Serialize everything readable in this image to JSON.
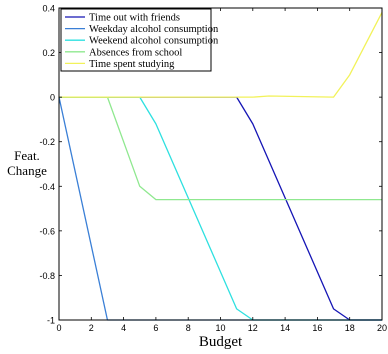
{
  "chart_data": {
    "type": "line",
    "title": "",
    "xlabel": "Budget",
    "ylabel": "Feat. Change",
    "xlim": [
      0,
      20
    ],
    "ylim": [
      -1,
      0.4
    ],
    "xticks": [
      0,
      2,
      4,
      6,
      8,
      10,
      12,
      14,
      16,
      18,
      20
    ],
    "yticks": [
      0.4,
      0.2,
      0,
      -0.2,
      -0.4,
      -0.6,
      -0.8,
      -1
    ],
    "ytick_labels": [
      "0.4",
      "0.2",
      "0",
      "-0.2",
      "-0.4",
      "-0.6",
      "-0.8",
      "-1"
    ],
    "grid": false,
    "legend_position": "top-left",
    "series": [
      {
        "name": "Time out with friends",
        "color": "#1515b5",
        "x": [
          0,
          11,
          12,
          17,
          18,
          20
        ],
        "y": [
          0,
          0,
          -0.12,
          -0.95,
          -1,
          -1
        ]
      },
      {
        "name": "Weekday alcohol consumption",
        "color": "#3a7fd6",
        "x": [
          0,
          3,
          20
        ],
        "y": [
          0,
          -1,
          -1
        ]
      },
      {
        "name": "Weekend alcohol consumption",
        "color": "#2ee0e0",
        "x": [
          0,
          5,
          6,
          11,
          12,
          20
        ],
        "y": [
          0,
          0,
          -0.12,
          -0.95,
          -1,
          -1
        ]
      },
      {
        "name": "Absences from school",
        "color": "#8fe88f",
        "x": [
          0,
          3,
          5,
          6,
          20
        ],
        "y": [
          0,
          0,
          -0.4,
          -0.46,
          -0.46
        ]
      },
      {
        "name": "Time spent studying",
        "color": "#f2f25a",
        "x": [
          0,
          12,
          13,
          17,
          18,
          20
        ],
        "y": [
          0,
          0,
          0.005,
          0,
          0.1,
          0.38
        ]
      }
    ]
  }
}
